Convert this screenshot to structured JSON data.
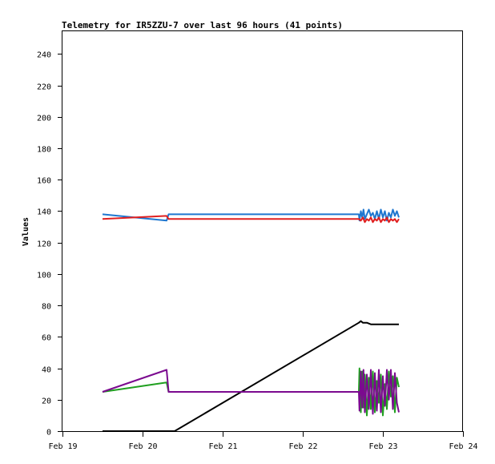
{
  "chart_data": {
    "type": "line",
    "title": "Telemetry for IR5ZZU-7 over last 96 hours (41 points)",
    "xlabel": "",
    "ylabel": "Values",
    "xlim": [
      "2024-02-19",
      "2024-02-24"
    ],
    "ylim": [
      0,
      255
    ],
    "x_ticks": [
      {
        "date": "2024-02-19",
        "label": "Feb 19"
      },
      {
        "date": "2024-02-20",
        "label": "Feb 20"
      },
      {
        "date": "2024-02-21",
        "label": "Feb 21"
      },
      {
        "date": "2024-02-22",
        "label": "Feb 22"
      },
      {
        "date": "2024-02-23",
        "label": "Feb 23"
      },
      {
        "date": "2024-02-24",
        "label": "Feb 24"
      }
    ],
    "y_ticks": [
      0,
      20,
      40,
      60,
      80,
      100,
      120,
      140,
      160,
      180,
      200,
      220,
      240
    ],
    "grid": false,
    "legend": "none",
    "series": [
      {
        "color": "#1f77d0",
        "points": [
          [
            "2024-02-19T12:00",
            138
          ],
          [
            "2024-02-20T07:12",
            134
          ],
          [
            "2024-02-20T07:48",
            138
          ],
          [
            "2024-02-22T16:48",
            138
          ],
          [
            "2024-02-22T17:00",
            134
          ],
          [
            "2024-02-22T17:24",
            140
          ],
          [
            "2024-02-22T17:48",
            136
          ],
          [
            "2024-02-22T18:12",
            141
          ],
          [
            "2024-02-22T18:36",
            135
          ],
          [
            "2024-02-22T19:12",
            138
          ],
          [
            "2024-02-22T19:48",
            141
          ],
          [
            "2024-02-22T20:24",
            137
          ],
          [
            "2024-02-22T21:00",
            139
          ],
          [
            "2024-02-22T21:36",
            135
          ],
          [
            "2024-02-22T22:12",
            140
          ],
          [
            "2024-02-22T22:48",
            135
          ],
          [
            "2024-02-22T23:24",
            141
          ],
          [
            "2024-02-23T00:00",
            136
          ],
          [
            "2024-02-23T00:36",
            140
          ],
          [
            "2024-02-23T01:12",
            134
          ],
          [
            "2024-02-23T01:48",
            139
          ],
          [
            "2024-02-23T02:24",
            136
          ],
          [
            "2024-02-23T03:00",
            141
          ],
          [
            "2024-02-23T03:36",
            137
          ],
          [
            "2024-02-23T04:12",
            140
          ],
          [
            "2024-02-23T04:48",
            136
          ]
        ]
      },
      {
        "color": "#e02020",
        "points": [
          [
            "2024-02-19T12:00",
            135
          ],
          [
            "2024-02-20T07:12",
            137
          ],
          [
            "2024-02-20T07:48",
            135
          ],
          [
            "2024-02-22T16:48",
            135
          ],
          [
            "2024-02-22T17:24",
            134
          ],
          [
            "2024-02-22T18:00",
            136
          ],
          [
            "2024-02-22T18:36",
            133
          ],
          [
            "2024-02-22T19:12",
            135
          ],
          [
            "2024-02-22T19:48",
            134
          ],
          [
            "2024-02-22T20:24",
            136
          ],
          [
            "2024-02-22T21:00",
            133
          ],
          [
            "2024-02-22T21:36",
            135
          ],
          [
            "2024-02-22T22:12",
            134
          ],
          [
            "2024-02-22T22:48",
            136
          ],
          [
            "2024-02-22T23:24",
            133
          ],
          [
            "2024-02-23T00:00",
            135
          ],
          [
            "2024-02-23T00:36",
            134
          ],
          [
            "2024-02-23T01:12",
            136
          ],
          [
            "2024-02-23T01:48",
            133
          ],
          [
            "2024-02-23T02:24",
            135
          ],
          [
            "2024-02-23T03:00",
            134
          ],
          [
            "2024-02-23T03:36",
            135
          ],
          [
            "2024-02-23T04:12",
            133
          ],
          [
            "2024-02-23T04:48",
            135
          ]
        ]
      },
      {
        "color": "#000000",
        "points": [
          [
            "2024-02-19T12:00",
            0
          ],
          [
            "2024-02-20T09:36",
            0
          ],
          [
            "2024-02-22T16:48",
            69
          ],
          [
            "2024-02-22T17:24",
            70
          ],
          [
            "2024-02-22T18:00",
            69
          ],
          [
            "2024-02-22T19:12",
            69
          ],
          [
            "2024-02-22T20:24",
            68
          ],
          [
            "2024-02-23T04:48",
            68
          ]
        ]
      },
      {
        "color": "#20a020",
        "points": [
          [
            "2024-02-19T12:00",
            25
          ],
          [
            "2024-02-20T07:12",
            31
          ],
          [
            "2024-02-20T07:48",
            25
          ],
          [
            "2024-02-22T16:48",
            25
          ],
          [
            "2024-02-22T17:00",
            40
          ],
          [
            "2024-02-22T17:24",
            12
          ],
          [
            "2024-02-22T17:48",
            38
          ],
          [
            "2024-02-22T18:12",
            15
          ],
          [
            "2024-02-22T18:36",
            36
          ],
          [
            "2024-02-22T19:12",
            10
          ],
          [
            "2024-02-22T19:48",
            34
          ],
          [
            "2024-02-22T20:24",
            14
          ],
          [
            "2024-02-22T21:00",
            38
          ],
          [
            "2024-02-22T21:36",
            12
          ],
          [
            "2024-02-22T22:12",
            32
          ],
          [
            "2024-02-22T22:48",
            18
          ],
          [
            "2024-02-22T23:24",
            36
          ],
          [
            "2024-02-23T00:00",
            10
          ],
          [
            "2024-02-23T00:36",
            30
          ],
          [
            "2024-02-23T01:12",
            14
          ],
          [
            "2024-02-23T01:48",
            38
          ],
          [
            "2024-02-23T02:24",
            22
          ],
          [
            "2024-02-23T03:00",
            35
          ],
          [
            "2024-02-23T03:36",
            12
          ],
          [
            "2024-02-23T04:12",
            34
          ],
          [
            "2024-02-23T04:48",
            28
          ]
        ]
      },
      {
        "color": "#7b0a8f",
        "points": [
          [
            "2024-02-19T12:00",
            25
          ],
          [
            "2024-02-20T07:12",
            39
          ],
          [
            "2024-02-20T07:48",
            25
          ],
          [
            "2024-02-22T16:48",
            25
          ],
          [
            "2024-02-22T17:00",
            13
          ],
          [
            "2024-02-22T17:24",
            38
          ],
          [
            "2024-02-22T17:48",
            15
          ],
          [
            "2024-02-22T18:12",
            39
          ],
          [
            "2024-02-22T18:36",
            12
          ],
          [
            "2024-02-22T19:12",
            36
          ],
          [
            "2024-02-22T19:48",
            14
          ],
          [
            "2024-02-22T20:24",
            39
          ],
          [
            "2024-02-22T21:00",
            11
          ],
          [
            "2024-02-22T21:36",
            37
          ],
          [
            "2024-02-22T22:12",
            13
          ],
          [
            "2024-02-22T22:48",
            39
          ],
          [
            "2024-02-22T23:24",
            12
          ],
          [
            "2024-02-23T00:00",
            35
          ],
          [
            "2024-02-23T00:36",
            16
          ],
          [
            "2024-02-23T01:12",
            39
          ],
          [
            "2024-02-23T01:48",
            20
          ],
          [
            "2024-02-23T02:24",
            39
          ],
          [
            "2024-02-23T03:00",
            14
          ],
          [
            "2024-02-23T03:36",
            37
          ],
          [
            "2024-02-23T04:12",
            18
          ],
          [
            "2024-02-23T04:48",
            12
          ]
        ]
      }
    ]
  }
}
